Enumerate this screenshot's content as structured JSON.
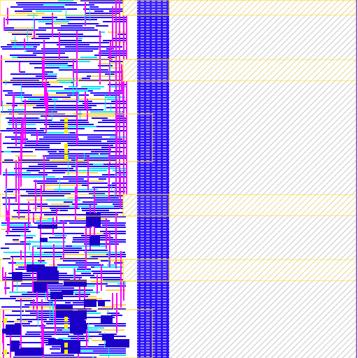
{
  "view": {
    "name": "chip-layout-viewport"
  },
  "colors": {
    "background": "#ffffff",
    "metal1": "#2000ff",
    "metal1_dark": "#1a00c8",
    "metal2": "#ff00ff",
    "poly": "#00e5ff",
    "diffusion": "#ffd24d",
    "boundary": "#ffd400",
    "hatch": "#c8c8c8",
    "via": "#ffee00",
    "edge_line": "#8a3aa8"
  },
  "layers": [
    {
      "name": "metal1",
      "color_key": "metal1"
    },
    {
      "name": "metal2",
      "color_key": "metal2"
    },
    {
      "name": "poly",
      "color_key": "poly"
    },
    {
      "name": "diffusion",
      "color_key": "diffusion"
    },
    {
      "name": "cell-boundary",
      "color_key": "boundary"
    }
  ]
}
